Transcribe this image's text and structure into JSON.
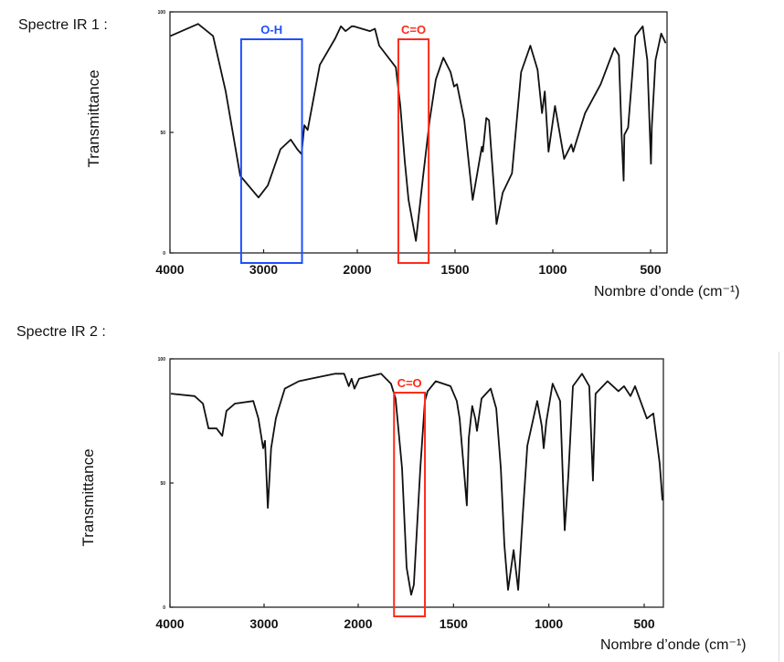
{
  "chart_data": [
    {
      "type": "line",
      "title": "Spectre IR 1 :",
      "xlabel": "Nombre d’onde (cm⁻¹)",
      "ylabel": "Transmittance",
      "xlim": [
        4000,
        420
      ],
      "ylim": [
        0,
        100
      ],
      "x_ticks": [
        "4000",
        "3000",
        "2000",
        "1500",
        "1000",
        "500"
      ],
      "x_tick_values": [
        4000,
        3000,
        2000,
        1500,
        1000,
        500
      ],
      "y_ticks": [
        "0",
        "50",
        "100"
      ],
      "y_tick_values": [
        0,
        50,
        100
      ],
      "grid": false,
      "annotations": [
        {
          "label": "O-H",
          "color": "#1f4fff",
          "range": [
            3240,
            2590
          ]
        },
        {
          "label": "C=O",
          "color": "#ff2a1a",
          "range": [
            1790,
            1635
          ]
        }
      ],
      "points": [
        [
          3995,
          90
        ],
        [
          3700,
          95
        ],
        [
          3540,
          90
        ],
        [
          3405,
          67
        ],
        [
          3250,
          32
        ],
        [
          3055,
          23
        ],
        [
          2955,
          28
        ],
        [
          2820,
          43
        ],
        [
          2710,
          47
        ],
        [
          2640,
          43
        ],
        [
          2595,
          41
        ],
        [
          2565,
          53
        ],
        [
          2530,
          51
        ],
        [
          2400,
          78
        ],
        [
          2235,
          89
        ],
        [
          2175,
          94
        ],
        [
          2125,
          92
        ],
        [
          2060,
          94
        ],
        [
          2040,
          94
        ],
        [
          1935,
          92
        ],
        [
          1910,
          93
        ],
        [
          1888,
          86
        ],
        [
          1803,
          77
        ],
        [
          1780,
          61
        ],
        [
          1757,
          38
        ],
        [
          1738,
          22
        ],
        [
          1700,
          5
        ],
        [
          1663,
          32
        ],
        [
          1630,
          55
        ],
        [
          1598,
          72
        ],
        [
          1560,
          81
        ],
        [
          1523,
          75
        ],
        [
          1505,
          69
        ],
        [
          1490,
          70
        ],
        [
          1453,
          55
        ],
        [
          1410,
          22
        ],
        [
          1363,
          44
        ],
        [
          1358,
          42
        ],
        [
          1340,
          56
        ],
        [
          1326,
          55
        ],
        [
          1288,
          12
        ],
        [
          1256,
          25
        ],
        [
          1209,
          33
        ],
        [
          1162,
          75
        ],
        [
          1115,
          86
        ],
        [
          1078,
          76
        ],
        [
          1055,
          58
        ],
        [
          1041,
          67
        ],
        [
          1022,
          42
        ],
        [
          989,
          61
        ],
        [
          942,
          39
        ],
        [
          905,
          45
        ],
        [
          896,
          42
        ],
        [
          835,
          58
        ],
        [
          755,
          70
        ],
        [
          685,
          85
        ],
        [
          662,
          82
        ],
        [
          648,
          49
        ],
        [
          638,
          30
        ],
        [
          634,
          49
        ],
        [
          615,
          52
        ],
        [
          578,
          90
        ],
        [
          540,
          94
        ],
        [
          517,
          80
        ],
        [
          498,
          37
        ],
        [
          494,
          52
        ],
        [
          475,
          80
        ],
        [
          446,
          91
        ],
        [
          423,
          87
        ]
      ]
    },
    {
      "type": "line",
      "title": "Spectre IR 2 :",
      "xlabel": "Nombre d’onde (cm⁻¹)",
      "ylabel": "Transmittance",
      "xlim": [
        4000,
        400
      ],
      "ylim": [
        0,
        100
      ],
      "x_ticks": [
        "4000",
        "3000",
        "2000",
        "1500",
        "1000",
        "500"
      ],
      "x_tick_values": [
        4000,
        3000,
        2000,
        1500,
        1000,
        500
      ],
      "y_ticks": [
        "0",
        "50",
        "100"
      ],
      "y_tick_values": [
        0,
        50,
        100
      ],
      "grid": false,
      "annotations": [
        {
          "label": "C=O",
          "color": "#ff2a1a",
          "range": [
            1812,
            1650
          ]
        }
      ],
      "points": [
        [
          3990,
          86
        ],
        [
          3738,
          85
        ],
        [
          3650,
          82
        ],
        [
          3590,
          72
        ],
        [
          3505,
          72
        ],
        [
          3445,
          69
        ],
        [
          3400,
          79
        ],
        [
          3310,
          82
        ],
        [
          3115,
          83
        ],
        [
          3060,
          76
        ],
        [
          3010,
          64
        ],
        [
          2990,
          67
        ],
        [
          2960,
          40
        ],
        [
          2925,
          64
        ],
        [
          2875,
          76
        ],
        [
          2845,
          80
        ],
        [
          2780,
          88
        ],
        [
          2630,
          91
        ],
        [
          2505,
          92
        ],
        [
          2245,
          94
        ],
        [
          2150,
          94
        ],
        [
          2100,
          89
        ],
        [
          2070,
          92
        ],
        [
          2040,
          88
        ],
        [
          1995,
          92
        ],
        [
          1880,
          94
        ],
        [
          1828,
          90
        ],
        [
          1804,
          84
        ],
        [
          1770,
          56
        ],
        [
          1746,
          16
        ],
        [
          1722,
          5
        ],
        [
          1708,
          9
        ],
        [
          1674,
          56
        ],
        [
          1650,
          83
        ],
        [
          1636,
          87
        ],
        [
          1593,
          91
        ],
        [
          1516,
          89
        ],
        [
          1483,
          83
        ],
        [
          1468,
          76
        ],
        [
          1444,
          54
        ],
        [
          1430,
          41
        ],
        [
          1420,
          68
        ],
        [
          1402,
          81
        ],
        [
          1386,
          76
        ],
        [
          1377,
          71
        ],
        [
          1353,
          84
        ],
        [
          1305,
          88
        ],
        [
          1276,
          80
        ],
        [
          1252,
          56
        ],
        [
          1233,
          25
        ],
        [
          1214,
          7
        ],
        [
          1185,
          23
        ],
        [
          1161,
          7
        ],
        [
          1137,
          37
        ],
        [
          1113,
          65
        ],
        [
          1061,
          83
        ],
        [
          1037,
          73
        ],
        [
          1027,
          64
        ],
        [
          1013,
          75
        ],
        [
          980,
          90
        ],
        [
          941,
          83
        ],
        [
          917,
          31
        ],
        [
          898,
          53
        ],
        [
          874,
          89
        ],
        [
          826,
          94
        ],
        [
          788,
          89
        ],
        [
          769,
          51
        ],
        [
          755,
          86
        ],
        [
          692,
          91
        ],
        [
          635,
          87
        ],
        [
          606,
          89
        ],
        [
          572,
          85
        ],
        [
          548,
          89
        ],
        [
          486,
          76
        ],
        [
          452,
          78
        ],
        [
          419,
          58
        ],
        [
          404,
          43
        ]
      ]
    }
  ]
}
